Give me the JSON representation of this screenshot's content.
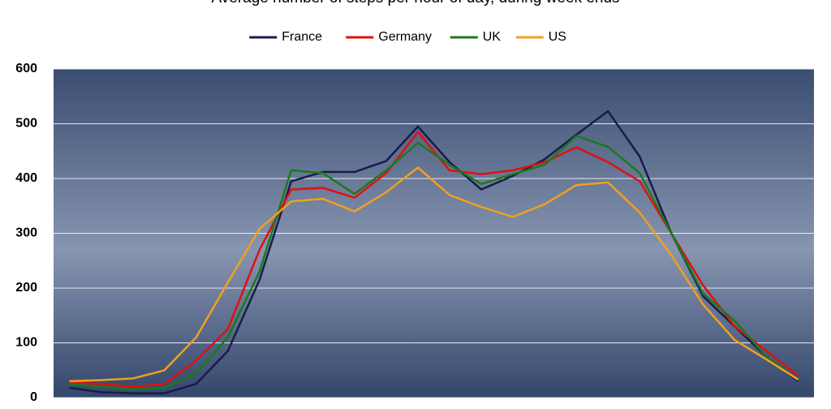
{
  "chart_data": {
    "type": "line",
    "title": "Average number of steps per hour of day, during week ends",
    "categories": [
      null,
      null,
      null,
      null,
      null,
      null,
      null,
      null,
      null,
      null,
      null,
      null,
      null,
      null,
      null,
      null,
      null,
      null,
      null,
      null,
      null,
      null,
      null,
      null
    ],
    "series": [
      {
        "name": "France",
        "color": "#1a1a4e",
        "values": [
          18,
          10,
          8,
          8,
          25,
          85,
          215,
          395,
          412,
          412,
          432,
          495,
          430,
          380,
          405,
          435,
          480,
          523,
          440,
          300,
          185,
          130,
          75,
          30
        ]
      },
      {
        "name": "Germany",
        "color": "#e01010",
        "values": [
          28,
          25,
          20,
          25,
          68,
          125,
          270,
          380,
          383,
          365,
          410,
          485,
          415,
          408,
          415,
          430,
          457,
          430,
          395,
          300,
          205,
          130,
          85,
          40
        ]
      },
      {
        "name": "UK",
        "color": "#1a7a1a",
        "values": [
          25,
          20,
          15,
          18,
          45,
          110,
          230,
          415,
          410,
          372,
          415,
          465,
          425,
          390,
          408,
          425,
          478,
          458,
          410,
          300,
          190,
          140,
          75,
          32
        ]
      },
      {
        "name": "US",
        "color": "#f0a020",
        "values": [
          30,
          32,
          35,
          50,
          110,
          210,
          308,
          358,
          363,
          340,
          375,
          420,
          370,
          348,
          330,
          353,
          388,
          393,
          338,
          260,
          170,
          105,
          70,
          33
        ]
      }
    ],
    "ylim": [
      0,
      600
    ],
    "yticks": [
      0,
      100,
      200,
      300,
      400,
      500,
      600
    ],
    "grid": true
  }
}
